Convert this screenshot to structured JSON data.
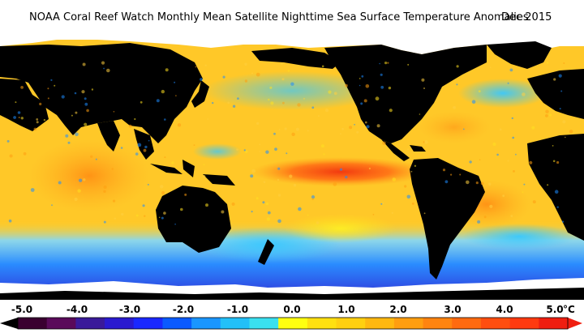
{
  "header": {
    "title": "NOAA Coral Reef Watch Monthly Mean Satellite Nighttime Sea Surface Temperature Anomalies",
    "date": "Dec 2015"
  },
  "legend": {
    "ticks": [
      "-5.0",
      "-4.0",
      "-3.0",
      "-2.0",
      "-1.0",
      "0.0",
      "1.0",
      "2.0",
      "3.0",
      "4.0",
      "5.0"
    ],
    "unit": "°C",
    "colors": [
      "#3a0030",
      "#5a0a5a",
      "#3a1a9a",
      "#2a1ad0",
      "#1a28ff",
      "#0a5aff",
      "#1a96ff",
      "#22c0f8",
      "#3ae0f0",
      "#ffff10",
      "#ffe010",
      "#ffd010",
      "#ffb810",
      "#ff9e10",
      "#ff8410",
      "#ff6a10",
      "#ff4e10",
      "#ff3a10",
      "#f01e10"
    ]
  },
  "map": {
    "land_color": "#000000",
    "nodata_color": "#ffffff",
    "ocean_base_color": "#ffc828",
    "warm_anomaly_color": "#ff3a10",
    "cool_anomaly_color": "#1e8cff",
    "strong_cool_color": "#2a1ad0"
  }
}
